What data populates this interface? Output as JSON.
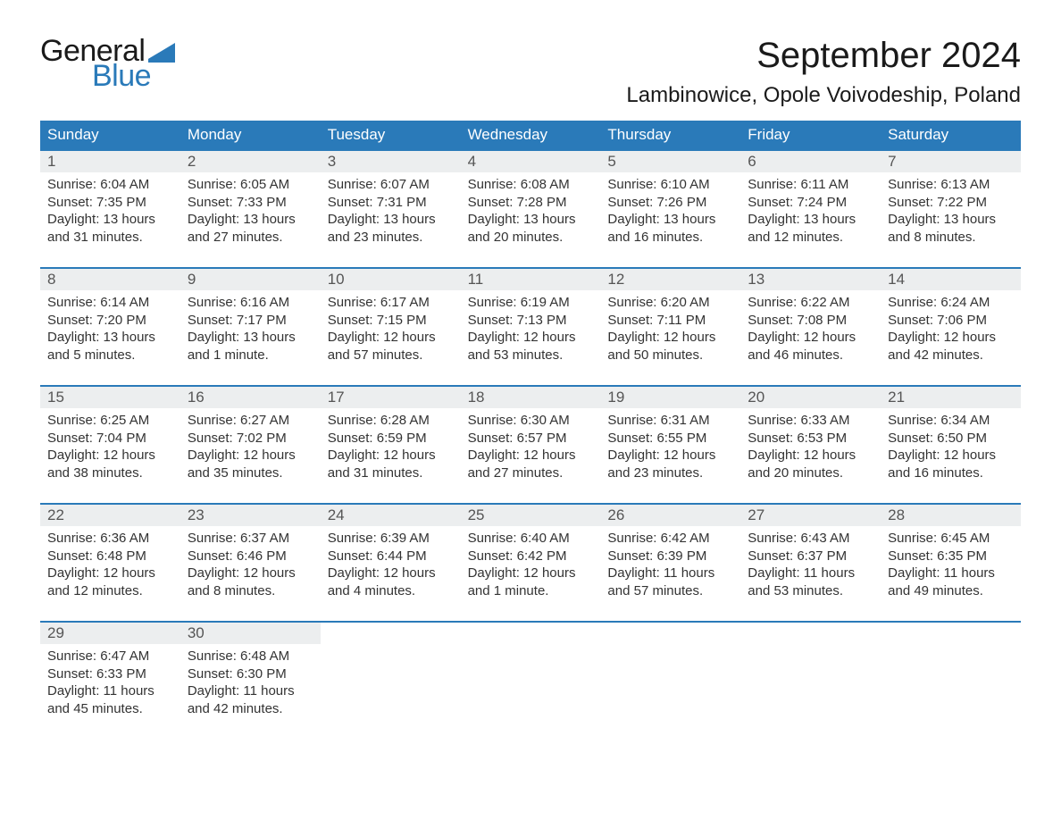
{
  "logo": {
    "word1": "General",
    "word2": "Blue",
    "accent_color": "#2a7ab9",
    "shape_color": "#2a7ab9"
  },
  "title": "September 2024",
  "location": "Lambinowice, Opole Voivodeship, Poland",
  "columns": [
    "Sunday",
    "Monday",
    "Tuesday",
    "Wednesday",
    "Thursday",
    "Friday",
    "Saturday"
  ],
  "style": {
    "header_bg": "#2a7ab9",
    "header_fg": "#ffffff",
    "daynum_bg": "#eceeef",
    "week_border": "#2a7ab9",
    "body_bg": "#ffffff",
    "text_color": "#333333",
    "title_fontsize": 40,
    "location_fontsize": 24,
    "header_fontsize": 17,
    "cell_fontsize": 15
  },
  "weeks": [
    {
      "days": [
        {
          "n": "1",
          "sunrise": "Sunrise: 6:04 AM",
          "sunset": "Sunset: 7:35 PM",
          "dl1": "Daylight: 13 hours",
          "dl2": "and 31 minutes."
        },
        {
          "n": "2",
          "sunrise": "Sunrise: 6:05 AM",
          "sunset": "Sunset: 7:33 PM",
          "dl1": "Daylight: 13 hours",
          "dl2": "and 27 minutes."
        },
        {
          "n": "3",
          "sunrise": "Sunrise: 6:07 AM",
          "sunset": "Sunset: 7:31 PM",
          "dl1": "Daylight: 13 hours",
          "dl2": "and 23 minutes."
        },
        {
          "n": "4",
          "sunrise": "Sunrise: 6:08 AM",
          "sunset": "Sunset: 7:28 PM",
          "dl1": "Daylight: 13 hours",
          "dl2": "and 20 minutes."
        },
        {
          "n": "5",
          "sunrise": "Sunrise: 6:10 AM",
          "sunset": "Sunset: 7:26 PM",
          "dl1": "Daylight: 13 hours",
          "dl2": "and 16 minutes."
        },
        {
          "n": "6",
          "sunrise": "Sunrise: 6:11 AM",
          "sunset": "Sunset: 7:24 PM",
          "dl1": "Daylight: 13 hours",
          "dl2": "and 12 minutes."
        },
        {
          "n": "7",
          "sunrise": "Sunrise: 6:13 AM",
          "sunset": "Sunset: 7:22 PM",
          "dl1": "Daylight: 13 hours",
          "dl2": "and 8 minutes."
        }
      ]
    },
    {
      "days": [
        {
          "n": "8",
          "sunrise": "Sunrise: 6:14 AM",
          "sunset": "Sunset: 7:20 PM",
          "dl1": "Daylight: 13 hours",
          "dl2": "and 5 minutes."
        },
        {
          "n": "9",
          "sunrise": "Sunrise: 6:16 AM",
          "sunset": "Sunset: 7:17 PM",
          "dl1": "Daylight: 13 hours",
          "dl2": "and 1 minute."
        },
        {
          "n": "10",
          "sunrise": "Sunrise: 6:17 AM",
          "sunset": "Sunset: 7:15 PM",
          "dl1": "Daylight: 12 hours",
          "dl2": "and 57 minutes."
        },
        {
          "n": "11",
          "sunrise": "Sunrise: 6:19 AM",
          "sunset": "Sunset: 7:13 PM",
          "dl1": "Daylight: 12 hours",
          "dl2": "and 53 minutes."
        },
        {
          "n": "12",
          "sunrise": "Sunrise: 6:20 AM",
          "sunset": "Sunset: 7:11 PM",
          "dl1": "Daylight: 12 hours",
          "dl2": "and 50 minutes."
        },
        {
          "n": "13",
          "sunrise": "Sunrise: 6:22 AM",
          "sunset": "Sunset: 7:08 PM",
          "dl1": "Daylight: 12 hours",
          "dl2": "and 46 minutes."
        },
        {
          "n": "14",
          "sunrise": "Sunrise: 6:24 AM",
          "sunset": "Sunset: 7:06 PM",
          "dl1": "Daylight: 12 hours",
          "dl2": "and 42 minutes."
        }
      ]
    },
    {
      "days": [
        {
          "n": "15",
          "sunrise": "Sunrise: 6:25 AM",
          "sunset": "Sunset: 7:04 PM",
          "dl1": "Daylight: 12 hours",
          "dl2": "and 38 minutes."
        },
        {
          "n": "16",
          "sunrise": "Sunrise: 6:27 AM",
          "sunset": "Sunset: 7:02 PM",
          "dl1": "Daylight: 12 hours",
          "dl2": "and 35 minutes."
        },
        {
          "n": "17",
          "sunrise": "Sunrise: 6:28 AM",
          "sunset": "Sunset: 6:59 PM",
          "dl1": "Daylight: 12 hours",
          "dl2": "and 31 minutes."
        },
        {
          "n": "18",
          "sunrise": "Sunrise: 6:30 AM",
          "sunset": "Sunset: 6:57 PM",
          "dl1": "Daylight: 12 hours",
          "dl2": "and 27 minutes."
        },
        {
          "n": "19",
          "sunrise": "Sunrise: 6:31 AM",
          "sunset": "Sunset: 6:55 PM",
          "dl1": "Daylight: 12 hours",
          "dl2": "and 23 minutes."
        },
        {
          "n": "20",
          "sunrise": "Sunrise: 6:33 AM",
          "sunset": "Sunset: 6:53 PM",
          "dl1": "Daylight: 12 hours",
          "dl2": "and 20 minutes."
        },
        {
          "n": "21",
          "sunrise": "Sunrise: 6:34 AM",
          "sunset": "Sunset: 6:50 PM",
          "dl1": "Daylight: 12 hours",
          "dl2": "and 16 minutes."
        }
      ]
    },
    {
      "days": [
        {
          "n": "22",
          "sunrise": "Sunrise: 6:36 AM",
          "sunset": "Sunset: 6:48 PM",
          "dl1": "Daylight: 12 hours",
          "dl2": "and 12 minutes."
        },
        {
          "n": "23",
          "sunrise": "Sunrise: 6:37 AM",
          "sunset": "Sunset: 6:46 PM",
          "dl1": "Daylight: 12 hours",
          "dl2": "and 8 minutes."
        },
        {
          "n": "24",
          "sunrise": "Sunrise: 6:39 AM",
          "sunset": "Sunset: 6:44 PM",
          "dl1": "Daylight: 12 hours",
          "dl2": "and 4 minutes."
        },
        {
          "n": "25",
          "sunrise": "Sunrise: 6:40 AM",
          "sunset": "Sunset: 6:42 PM",
          "dl1": "Daylight: 12 hours",
          "dl2": "and 1 minute."
        },
        {
          "n": "26",
          "sunrise": "Sunrise: 6:42 AM",
          "sunset": "Sunset: 6:39 PM",
          "dl1": "Daylight: 11 hours",
          "dl2": "and 57 minutes."
        },
        {
          "n": "27",
          "sunrise": "Sunrise: 6:43 AM",
          "sunset": "Sunset: 6:37 PM",
          "dl1": "Daylight: 11 hours",
          "dl2": "and 53 minutes."
        },
        {
          "n": "28",
          "sunrise": "Sunrise: 6:45 AM",
          "sunset": "Sunset: 6:35 PM",
          "dl1": "Daylight: 11 hours",
          "dl2": "and 49 minutes."
        }
      ]
    },
    {
      "days": [
        {
          "n": "29",
          "sunrise": "Sunrise: 6:47 AM",
          "sunset": "Sunset: 6:33 PM",
          "dl1": "Daylight: 11 hours",
          "dl2": "and 45 minutes."
        },
        {
          "n": "30",
          "sunrise": "Sunrise: 6:48 AM",
          "sunset": "Sunset: 6:30 PM",
          "dl1": "Daylight: 11 hours",
          "dl2": "and 42 minutes."
        },
        {
          "n": "",
          "sunrise": "",
          "sunset": "",
          "dl1": "",
          "dl2": ""
        },
        {
          "n": "",
          "sunrise": "",
          "sunset": "",
          "dl1": "",
          "dl2": ""
        },
        {
          "n": "",
          "sunrise": "",
          "sunset": "",
          "dl1": "",
          "dl2": ""
        },
        {
          "n": "",
          "sunrise": "",
          "sunset": "",
          "dl1": "",
          "dl2": ""
        },
        {
          "n": "",
          "sunrise": "",
          "sunset": "",
          "dl1": "",
          "dl2": ""
        }
      ]
    }
  ]
}
